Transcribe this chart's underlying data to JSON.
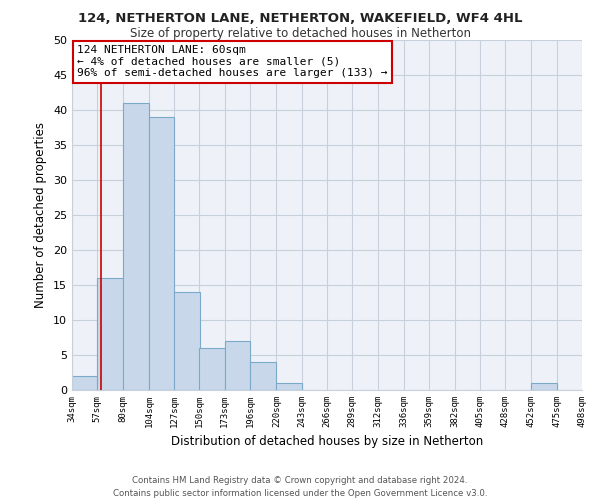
{
  "title": "124, NETHERTON LANE, NETHERTON, WAKEFIELD, WF4 4HL",
  "subtitle": "Size of property relative to detached houses in Netherton",
  "xlabel": "Distribution of detached houses by size in Netherton",
  "ylabel": "Number of detached properties",
  "bin_edges": [
    34,
    57,
    80,
    104,
    127,
    150,
    173,
    196,
    220,
    243,
    266,
    289,
    312,
    336,
    359,
    382,
    405,
    428,
    452,
    475,
    498
  ],
  "bin_counts": [
    2,
    16,
    41,
    39,
    14,
    6,
    7,
    4,
    1,
    0,
    0,
    0,
    0,
    0,
    0,
    0,
    0,
    0,
    1,
    0
  ],
  "bar_color": "#c8d8ea",
  "bar_edgecolor": "#7baac8",
  "ylim": [
    0,
    50
  ],
  "yticks": [
    0,
    5,
    10,
    15,
    20,
    25,
    30,
    35,
    40,
    45,
    50
  ],
  "property_line_x": 60,
  "property_line_color": "#cc0000",
  "annotation_line1": "124 NETHERTON LANE: 60sqm",
  "annotation_line2": "← 4% of detached houses are smaller (5)",
  "annotation_line3": "96% of semi-detached houses are larger (133) →",
  "annotation_box_facecolor": "#ffffff",
  "annotation_box_edgecolor": "#cc0000",
  "footer_line1": "Contains HM Land Registry data © Crown copyright and database right 2024.",
  "footer_line2": "Contains public sector information licensed under the Open Government Licence v3.0.",
  "tick_labels": [
    "34sqm",
    "57sqm",
    "80sqm",
    "104sqm",
    "127sqm",
    "150sqm",
    "173sqm",
    "196sqm",
    "220sqm",
    "243sqm",
    "266sqm",
    "289sqm",
    "312sqm",
    "336sqm",
    "359sqm",
    "382sqm",
    "405sqm",
    "428sqm",
    "452sqm",
    "475sqm",
    "498sqm"
  ],
  "background_color": "#ffffff",
  "axes_facecolor": "#eef2f8",
  "grid_color": "#c8d0dc"
}
